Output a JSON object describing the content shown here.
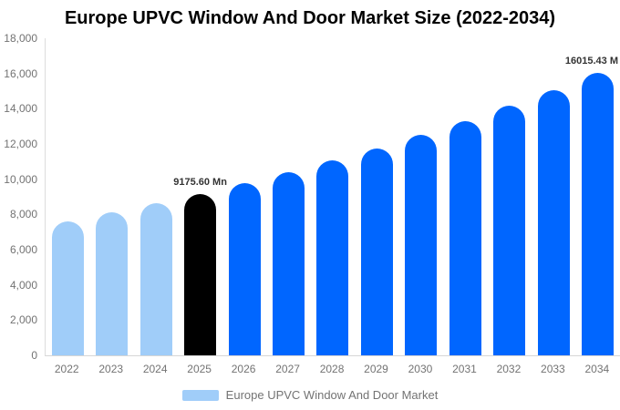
{
  "chart": {
    "title": "Europe UPVC Window And Door Market Size (2022-2034)",
    "legend": {
      "label": "Europe UPVC Window And Door Market",
      "swatch_color": "#a0cdf9"
    }
  },
  "chart_data": {
    "type": "bar",
    "title": "Europe UPVC Window And Door Market Size (2022-2034)",
    "xlabel": "",
    "ylabel": "",
    "ylim": [
      0,
      18000
    ],
    "y_tick_step": 2000,
    "y_tick_labels": [
      "0",
      "2,000",
      "4,000",
      "6,000",
      "8,000",
      "10,000",
      "12,000",
      "14,000",
      "16,000",
      "18,000"
    ],
    "grid": false,
    "legend_position": "bottom",
    "legend_entries": [
      "Europe UPVC Window And Door Market"
    ],
    "categories": [
      "2022",
      "2023",
      "2024",
      "2025",
      "2026",
      "2027",
      "2028",
      "2029",
      "2030",
      "2031",
      "2032",
      "2033",
      "2034"
    ],
    "values": [
      7621,
      8107,
      8625,
      9175.6,
      9761,
      10385,
      11047,
      11753,
      12503,
      13301,
      14150,
      15054,
      16015.43
    ],
    "bar_colors": [
      "#a0cdf9",
      "#a0cdf9",
      "#a0cdf9",
      "#000000",
      "#0066ff",
      "#0066ff",
      "#0066ff",
      "#0066ff",
      "#0066ff",
      "#0066ff",
      "#0066ff",
      "#0066ff",
      "#0066ff"
    ],
    "colors": {
      "historical": "#a0cdf9",
      "base_year": "#000000",
      "forecast": "#0066ff"
    },
    "annotations": [
      {
        "category": "2025",
        "text": "9175.60 Mn"
      },
      {
        "category": "2034",
        "text": "16015.43 M"
      }
    ]
  }
}
